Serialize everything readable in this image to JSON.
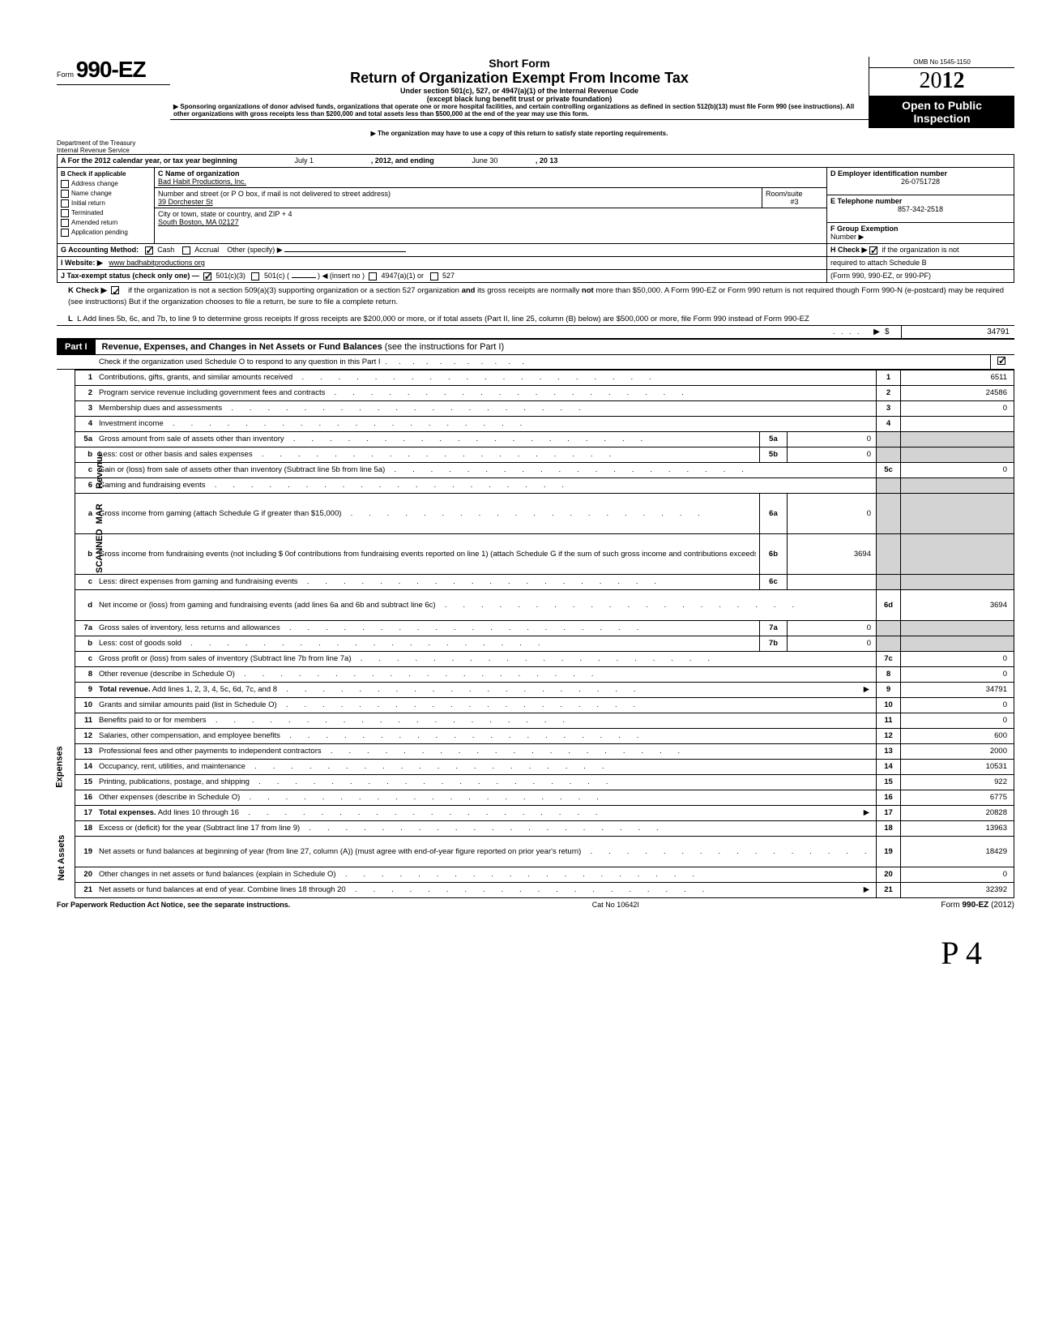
{
  "form": {
    "prefix": "Form",
    "number": "990-EZ",
    "short": "Short Form",
    "title": "Return of Organization Exempt From Income Tax",
    "sub1": "Under section 501(c), 527, or 4947(a)(1) of the Internal Revenue Code",
    "sub2": "(except black lung benefit trust or private foundation)",
    "sponsor": "▶ Sponsoring organizations of donor advised funds, organizations that operate one or more hospital facilities, and certain controlling organizations as defined in section 512(b)(13) must file Form 990 (see instructions). All other organizations with gross receipts less than $200,000 and total assets less than $500,000 at the end of the year may use this form.",
    "satisfy": "▶ The organization may have to use a copy of this return to satisfy state reporting requirements.",
    "dept1": "Department of the Treasury",
    "dept2": "Internal Revenue Service",
    "omb": "OMB No  1545-1150",
    "year": "2012",
    "open1": "Open to Public",
    "open2": "Inspection"
  },
  "hdr": {
    "A": "A  For the 2012 calendar year, or tax year beginning",
    "A_begin": "July 1",
    "A_mid": ", 2012, and ending",
    "A_end": "June 30",
    "A_yr": ", 20   13",
    "B": "B  Check if applicable",
    "B_items": [
      "Address change",
      "Name change",
      "Initial return",
      "Terminated",
      "Amended return",
      "Application pending"
    ],
    "C": "C  Name of organization",
    "C_name": "Bad Habit Productions, Inc.",
    "C_addr_lbl": "Number and street (or P O  box, if mail is not delivered to street address)",
    "C_room": "Room/suite",
    "C_addr": "39 Dorchester St",
    "C_suite": "#3",
    "C_city_lbl": "City or town, state or country, and ZIP + 4",
    "C_city": "South Boston, MA 02127",
    "D": "D Employer identification number",
    "D_val": "26-0751728",
    "E": "E  Telephone number",
    "E_val": "857-342-2518",
    "F": "F Group Exemption",
    "F2": "Number  ▶",
    "G": "G  Accounting Method:",
    "G_cash": "Cash",
    "G_accr": "Accrual",
    "G_other": "Other (specify)  ▶",
    "H": "H  Check  ▶ ",
    "H2": " if the organization is not",
    "H3": "required to attach Schedule B",
    "H4": "(Form 990, 990-EZ, or 990-PF)",
    "I": "I   Website: ▶",
    "I_val": "www badhabitproductions org",
    "J": "J  Tax-exempt status (check only one) —",
    "J1": "501(c)(3)",
    "J2": "501(c) (",
    "J2b": ")  ◀ (insert no )",
    "J3": "4947(a)(1) or",
    "J4": "527"
  },
  "K": "K  Check  ▶       if the organization is not a section 509(a)(3) supporting organization or a section 527 organization and its gross receipts are normally not more than $50,000. A Form 990-EZ or Form 990 return is not required though Form 990-N (e-postcard) may be required (see instructions)  But if the organization chooses to file a return, be sure to file a complete return.",
  "L": "L  Add lines 5b, 6c, and 7b, to line 9 to determine gross receipts  If gross receipts are $200,000 or more, or if total assets (Part II, line 25, column (B) below) are $500,000 or more, file Form 990 instead of Form 990-EZ",
  "L_amt": "34791",
  "part1": {
    "tag": "Part I",
    "title": "Revenue, Expenses, and Changes in Net Assets or Fund Balances ",
    "paren": "(see the instructions for Part I)",
    "chk": "Check if the organization used Schedule O to respond to any question in this Part I"
  },
  "sections": {
    "revenue": "Revenue",
    "expenses": "Expenses",
    "netassets": "Net Assets",
    "scanned": "SCANNED  MAR"
  },
  "rows": [
    {
      "n": "1",
      "d": "Contributions, gifts, grants, and similar amounts received",
      "rn": "1",
      "amt": "6511"
    },
    {
      "n": "2",
      "d": "Program service revenue including government fees and contracts",
      "rn": "2",
      "amt": "24586"
    },
    {
      "n": "3",
      "d": "Membership dues and assessments",
      "rn": "3",
      "amt": "0"
    },
    {
      "n": "4",
      "d": "Investment income",
      "rn": "4",
      "amt": ""
    },
    {
      "n": "5a",
      "d": "Gross amount from sale of assets other than inventory",
      "mn": "5a",
      "mamt": "0",
      "shade": true
    },
    {
      "n": "b",
      "d": "Less: cost or other basis and sales expenses",
      "mn": "5b",
      "mamt": "0",
      "shade": true
    },
    {
      "n": "c",
      "d": "Gain or (loss) from sale of assets other than inventory (Subtract line 5b from line 5a)",
      "rn": "5c",
      "amt": "0"
    },
    {
      "n": "6",
      "d": "Gaming and fundraising events",
      "shade": true,
      "noamt": true
    },
    {
      "n": "a",
      "d": "Gross income from gaming (attach Schedule G if greater than $15,000)",
      "mn": "6a",
      "mamt": "0",
      "shade": true,
      "tall": true
    },
    {
      "n": "b",
      "d": "Gross income from fundraising events (not including  $                       0of contributions from fundraising events reported on line 1) (attach Schedule G if the sum of such gross income and contributions exceeds $15,000)",
      "mn": "6b",
      "mamt": "3694",
      "shade": true,
      "tall": true
    },
    {
      "n": "c",
      "d": "Less: direct expenses from gaming and fundraising events",
      "mn": "6c",
      "mamt": "",
      "shade": true
    },
    {
      "n": "d",
      "d": "Net income or (loss) from gaming and fundraising events (add lines 6a and 6b and subtract line 6c)",
      "rn": "6d",
      "amt": "3694",
      "tall": true
    },
    {
      "n": "7a",
      "d": "Gross sales of inventory, less returns and allowances",
      "mn": "7a",
      "mamt": "0",
      "shade": true
    },
    {
      "n": "b",
      "d": "Less: cost of goods sold",
      "mn": "7b",
      "mamt": "0",
      "shade": true
    },
    {
      "n": "c",
      "d": "Gross profit or (loss) from sales of inventory (Subtract line 7b from line 7a)",
      "rn": "7c",
      "amt": "0"
    },
    {
      "n": "8",
      "d": "Other revenue (describe in Schedule O)",
      "rn": "8",
      "amt": "0"
    },
    {
      "n": "9",
      "d": "Total revenue. Add lines 1, 2, 3, 4, 5c, 6d, 7c, and 8",
      "rn": "9",
      "amt": "34791",
      "bold": true,
      "arrow": true
    },
    {
      "n": "10",
      "d": "Grants and similar amounts paid (list in Schedule O)",
      "rn": "10",
      "amt": "0"
    },
    {
      "n": "11",
      "d": "Benefits paid to or for members",
      "rn": "11",
      "amt": "0"
    },
    {
      "n": "12",
      "d": "Salaries, other compensation, and employee benefits",
      "rn": "12",
      "amt": "600"
    },
    {
      "n": "13",
      "d": "Professional fees and other payments to independent contractors",
      "rn": "13",
      "amt": "2000"
    },
    {
      "n": "14",
      "d": "Occupancy, rent, utilities, and maintenance",
      "rn": "14",
      "amt": "10531"
    },
    {
      "n": "15",
      "d": "Printing, publications, postage, and shipping",
      "rn": "15",
      "amt": "922"
    },
    {
      "n": "16",
      "d": "Other expenses (describe in Schedule O)",
      "rn": "16",
      "amt": "6775"
    },
    {
      "n": "17",
      "d": "Total expenses. Add lines 10 through 16",
      "rn": "17",
      "amt": "20828",
      "bold": true,
      "arrow": true
    },
    {
      "n": "18",
      "d": "Excess or (deficit) for the year (Subtract line 17 from line 9)",
      "rn": "18",
      "amt": "13963"
    },
    {
      "n": "19",
      "d": "Net assets or fund balances at beginning of year (from line 27, column (A)) (must agree with end-of-year figure reported on prior year's return)",
      "rn": "19",
      "amt": "18429",
      "tall": true
    },
    {
      "n": "20",
      "d": "Other changes in net assets or fund balances (explain in Schedule O)",
      "rn": "20",
      "amt": "0"
    },
    {
      "n": "21",
      "d": "Net assets or fund balances at end of year. Combine lines 18 through 20",
      "rn": "21",
      "amt": "32392",
      "arrow": true
    }
  ],
  "footer": {
    "l": "For Paperwork Reduction Act Notice, see the separate instructions.",
    "m": "Cat  No  10642I",
    "r": "Form 990-EZ (2012)"
  },
  "pgmark": "P 4"
}
